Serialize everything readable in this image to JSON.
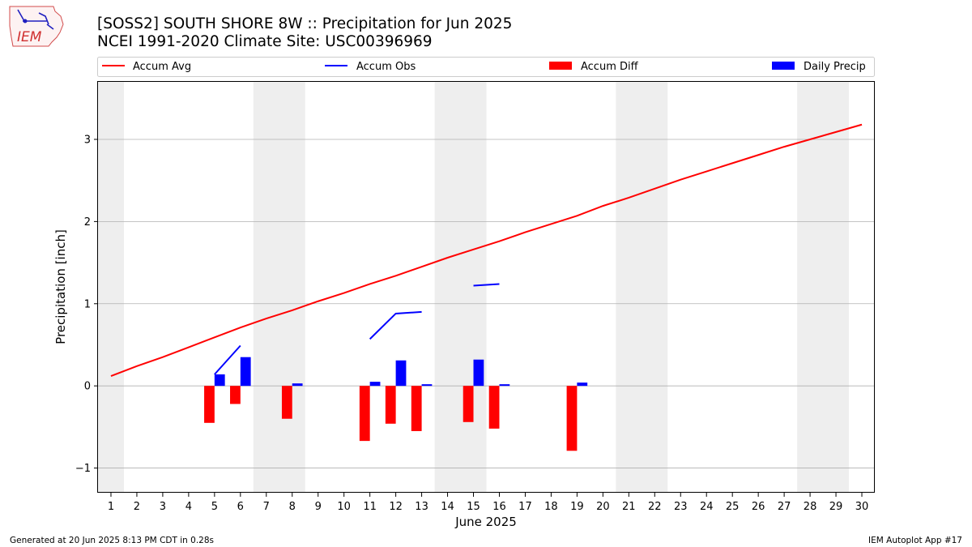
{
  "header": {
    "title_line1": "[SOSS2] SOUTH SHORE 8W :: Precipitation for Jun 2025",
    "title_line2": "NCEI 1991-2020 Climate Site: USC00396969",
    "logo_text": "IEM"
  },
  "footer": {
    "generated": "Generated at 20 Jun 2025 8:13 PM CDT in 0.28s",
    "app": "IEM Autoplot App #17"
  },
  "colors": {
    "avg": "#ff0000",
    "obs": "#0000ff",
    "diff": "#ff0000",
    "daily": "#0000ff",
    "weekend": "#eeeeee",
    "grid": "#b0b0b0"
  },
  "chart_data": {
    "type": "bar",
    "xlabel": "June 2025",
    "ylabel": "Precipitation [inch]",
    "xlim": [
      0.5,
      30.5
    ],
    "ylim": [
      -1.3,
      3.7
    ],
    "yticks": [
      -1,
      0,
      1,
      2,
      3
    ],
    "ytick_labels": [
      "−1",
      "0",
      "1",
      "2",
      "3"
    ],
    "xticks": [
      1,
      2,
      3,
      4,
      5,
      6,
      7,
      8,
      9,
      10,
      11,
      12,
      13,
      14,
      15,
      16,
      17,
      18,
      19,
      20,
      21,
      22,
      23,
      24,
      25,
      26,
      27,
      28,
      29,
      30
    ],
    "grid": "horizontal",
    "legend_position": "top",
    "legend": [
      "Accum Avg",
      "Accum Obs",
      "Accum Diff",
      "Daily Precip"
    ],
    "weekend_spans": [
      [
        0.5,
        1.5
      ],
      [
        6.5,
        8.5
      ],
      [
        13.5,
        15.5
      ],
      [
        20.5,
        22.5
      ],
      [
        27.5,
        29.5
      ]
    ],
    "series": [
      {
        "name": "Accum Avg",
        "kind": "line",
        "x": [
          1,
          2,
          3,
          4,
          5,
          6,
          7,
          8,
          9,
          10,
          11,
          12,
          13,
          14,
          15,
          16,
          17,
          18,
          19,
          20,
          21,
          22,
          23,
          24,
          25,
          26,
          27,
          28,
          29,
          30
        ],
        "values": [
          0.12,
          0.24,
          0.35,
          0.47,
          0.59,
          0.71,
          0.82,
          0.92,
          1.03,
          1.13,
          1.24,
          1.34,
          1.45,
          1.56,
          1.66,
          1.76,
          1.87,
          1.97,
          2.07,
          2.19,
          2.29,
          2.4,
          2.51,
          2.61,
          2.71,
          2.81,
          2.91,
          3.0,
          3.09,
          3.18
        ]
      },
      {
        "name": "Accum Obs",
        "kind": "line_segments",
        "segments": [
          {
            "x": [
              5,
              6
            ],
            "values": [
              0.14,
              0.49
            ]
          },
          {
            "x": [
              11,
              12,
              13
            ],
            "values": [
              0.57,
              0.88,
              0.9
            ]
          },
          {
            "x": [
              15,
              16
            ],
            "values": [
              1.22,
              1.24
            ]
          }
        ]
      },
      {
        "name": "Accum Diff",
        "kind": "bar",
        "x": [
          5,
          6,
          8,
          11,
          12,
          13,
          15,
          16,
          19
        ],
        "values": [
          -0.45,
          -0.22,
          -0.4,
          -0.67,
          -0.46,
          -0.55,
          -0.44,
          -0.52,
          -0.79
        ]
      },
      {
        "name": "Daily Precip",
        "kind": "bar",
        "x": [
          5,
          6,
          8,
          11,
          12,
          13,
          15,
          16,
          19
        ],
        "values": [
          0.14,
          0.35,
          0.03,
          0.05,
          0.31,
          0.02,
          0.32,
          0.02,
          0.04
        ]
      }
    ]
  }
}
